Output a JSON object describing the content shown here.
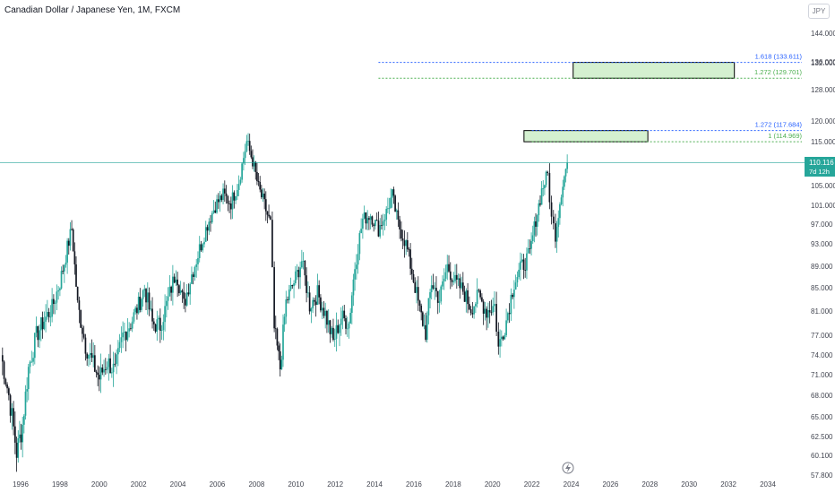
{
  "header": {
    "title": "Canadian Dollar / Japanese Yen, 1M, FXCM"
  },
  "currency": "JPY",
  "price_label": {
    "value": "110.116",
    "countdown": "7d 12h"
  },
  "colors": {
    "up": "#26a69a",
    "down": "#131722",
    "fib_blue": "#2962ff",
    "fib_green": "#4caf50",
    "zone_fill": "#d4f0d0",
    "last_line": "#26a69a"
  },
  "icons": {
    "bottom": "lightning-icon"
  },
  "fib_levels": [
    {
      "label": "1.618 (133.611)",
      "value": 133.611,
      "color": "blue"
    },
    {
      "label": "1.272 (129.701)",
      "value": 129.701,
      "color": "green"
    },
    {
      "label": "1.272 (117.684)",
      "value": 117.684,
      "color": "blue"
    },
    {
      "label": "1 (114.969)",
      "value": 114.969,
      "color": "green"
    }
  ],
  "zones": [
    {
      "from_year": 2024.1,
      "to_year": 2032.3,
      "low": 129.701,
      "high": 133.611
    },
    {
      "from_year": 2021.6,
      "to_year": 2027.9,
      "low": 114.969,
      "high": 117.684
    }
  ],
  "chart_data": {
    "type": "candlestick",
    "title": "Canadian Dollar / Japanese Yen, 1M, FXCM",
    "y_ticks": [
      144.0,
      136.0,
      132.0,
      128.0,
      120.0,
      115.0,
      110.0,
      105.0,
      101.0,
      97.0,
      93.0,
      89.0,
      85.0,
      81.0,
      77.0,
      74.0,
      71.0,
      68.0,
      65.0,
      62.5,
      60.1,
      57.8
    ],
    "y_tick_labels": [
      "144.000",
      "136.000",
      "132.000",
      "128.000",
      "120.000",
      "115.000",
      "110.000",
      "105.000",
      "101.000",
      "97.000",
      "93.000",
      "89.000",
      "85.000",
      "81.000",
      "77.000",
      "74.000",
      "71.000",
      "68.000",
      "65.000",
      "62.500",
      "60.100",
      "57.800"
    ],
    "x_ticks": [
      "1996",
      "1998",
      "2000",
      "2002",
      "2004",
      "2006",
      "2008",
      "2010",
      "2012",
      "2014",
      "2016",
      "2018",
      "2020",
      "2022",
      "2024",
      "2026",
      "2028",
      "2030",
      "2032",
      "2034"
    ],
    "x_range": [
      1995.0,
      2035.3
    ],
    "last_value": 110.116,
    "series": [
      {
        "closes": [
          {
            "t": 1995.0,
            "c": 74.0
          },
          {
            "t": 1995.4,
            "c": 68.0
          },
          {
            "t": 1995.8,
            "c": 60.5
          },
          {
            "t": 1996.1,
            "c": 64.0
          },
          {
            "t": 1996.4,
            "c": 72.0
          },
          {
            "t": 1996.8,
            "c": 77.0
          },
          {
            "t": 1997.2,
            "c": 79.5
          },
          {
            "t": 1997.6,
            "c": 81.5
          },
          {
            "t": 1998.0,
            "c": 86.0
          },
          {
            "t": 1998.3,
            "c": 91.0
          },
          {
            "t": 1998.6,
            "c": 96.0
          },
          {
            "t": 1998.9,
            "c": 82.0
          },
          {
            "t": 1999.3,
            "c": 75.5
          },
          {
            "t": 1999.7,
            "c": 72.5
          },
          {
            "t": 2000.0,
            "c": 70.5
          },
          {
            "t": 2000.4,
            "c": 73.0
          },
          {
            "t": 2000.8,
            "c": 71.5
          },
          {
            "t": 2001.2,
            "c": 77.0
          },
          {
            "t": 2001.6,
            "c": 79.0
          },
          {
            "t": 2002.0,
            "c": 82.0
          },
          {
            "t": 2002.3,
            "c": 85.0
          },
          {
            "t": 2002.7,
            "c": 79.0
          },
          {
            "t": 2003.1,
            "c": 78.5
          },
          {
            "t": 2003.5,
            "c": 83.0
          },
          {
            "t": 2003.9,
            "c": 88.0
          },
          {
            "t": 2004.3,
            "c": 82.0
          },
          {
            "t": 2004.7,
            "c": 87.5
          },
          {
            "t": 2005.1,
            "c": 92.0
          },
          {
            "t": 2005.5,
            "c": 97.0
          },
          {
            "t": 2005.9,
            "c": 101.0
          },
          {
            "t": 2006.3,
            "c": 103.0
          },
          {
            "t": 2006.7,
            "c": 101.5
          },
          {
            "t": 2007.1,
            "c": 106.0
          },
          {
            "t": 2007.5,
            "c": 115.0
          },
          {
            "t": 2007.8,
            "c": 110.5
          },
          {
            "t": 2008.1,
            "c": 104.5
          },
          {
            "t": 2008.4,
            "c": 101.0
          },
          {
            "t": 2008.7,
            "c": 97.0
          },
          {
            "t": 2008.9,
            "c": 78.0
          },
          {
            "t": 2009.2,
            "c": 72.0
          },
          {
            "t": 2009.5,
            "c": 82.5
          },
          {
            "t": 2009.9,
            "c": 86.0
          },
          {
            "t": 2010.3,
            "c": 90.0
          },
          {
            "t": 2010.7,
            "c": 82.0
          },
          {
            "t": 2011.1,
            "c": 84.0
          },
          {
            "t": 2011.5,
            "c": 80.5
          },
          {
            "t": 2011.9,
            "c": 76.0
          },
          {
            "t": 2012.3,
            "c": 80.0
          },
          {
            "t": 2012.7,
            "c": 79.0
          },
          {
            "t": 2013.0,
            "c": 89.0
          },
          {
            "t": 2013.4,
            "c": 98.0
          },
          {
            "t": 2013.8,
            "c": 99.0
          },
          {
            "t": 2014.2,
            "c": 96.0
          },
          {
            "t": 2014.6,
            "c": 99.5
          },
          {
            "t": 2014.9,
            "c": 103.0
          },
          {
            "t": 2015.2,
            "c": 97.0
          },
          {
            "t": 2015.6,
            "c": 93.0
          },
          {
            "t": 2015.9,
            "c": 88.0
          },
          {
            "t": 2016.3,
            "c": 81.0
          },
          {
            "t": 2016.6,
            "c": 77.5
          },
          {
            "t": 2016.9,
            "c": 86.0
          },
          {
            "t": 2017.3,
            "c": 83.0
          },
          {
            "t": 2017.7,
            "c": 89.0
          },
          {
            "t": 2018.1,
            "c": 86.0
          },
          {
            "t": 2018.5,
            "c": 84.5
          },
          {
            "t": 2018.9,
            "c": 81.5
          },
          {
            "t": 2019.3,
            "c": 83.5
          },
          {
            "t": 2019.7,
            "c": 81.0
          },
          {
            "t": 2020.1,
            "c": 82.0
          },
          {
            "t": 2020.3,
            "c": 75.0
          },
          {
            "t": 2020.7,
            "c": 79.5
          },
          {
            "t": 2021.1,
            "c": 86.0
          },
          {
            "t": 2021.5,
            "c": 89.0
          },
          {
            "t": 2021.9,
            "c": 91.0
          },
          {
            "t": 2022.2,
            "c": 98.0
          },
          {
            "t": 2022.5,
            "c": 104.0
          },
          {
            "t": 2022.8,
            "c": 107.5
          },
          {
            "t": 2023.0,
            "c": 98.0
          },
          {
            "t": 2023.2,
            "c": 95.0
          },
          {
            "t": 2023.5,
            "c": 104.0
          },
          {
            "t": 2023.8,
            "c": 110.116
          }
        ]
      }
    ]
  }
}
